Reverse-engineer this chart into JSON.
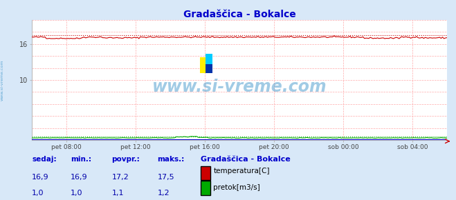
{
  "title": "Gradaščica - Bokalce",
  "title_color": "#0000cc",
  "bg_color": "#d8e8f8",
  "plot_bg_color": "#ffffff",
  "x_tick_labels": [
    "pet 08:00",
    "pet 12:00",
    "pet 16:00",
    "pet 20:00",
    "sob 00:00",
    "sob 04:00"
  ],
  "x_tick_positions": [
    0.083,
    0.25,
    0.417,
    0.583,
    0.75,
    0.917
  ],
  "ylim": [
    0,
    20
  ],
  "yticks_shown": [
    10,
    16
  ],
  "ytick_labels_shown": [
    "10",
    "16"
  ],
  "all_yticks": [
    0,
    2,
    4,
    6,
    8,
    10,
    12,
    14,
    16,
    18,
    20
  ],
  "temp_color": "#cc0000",
  "flow_color": "#00aa00",
  "height_color": "#0000cc",
  "grid_color": "#ffaaaa",
  "watermark": "www.si-vreme.com",
  "watermark_color": "#4499cc",
  "sidebar_text": "www.si-vreme.com",
  "sidebar_color": "#4499cc",
  "temp_min": 16.9,
  "temp_max": 17.5,
  "temp_avg": 17.2,
  "temp_curr": 16.9,
  "flow_min": 1.0,
  "flow_max": 1.2,
  "flow_avg": 1.1,
  "flow_curr": 1.0,
  "legend_title": "Gradaščica - Bokalce",
  "legend_title_color": "#0000cc",
  "label_color": "#0000aa",
  "table_header_color": "#0000cc",
  "temp_series_label": "temperatura[C]",
  "flow_series_label": "pretok[m3/s]",
  "temp_max_line": 17.5,
  "n_points": 288
}
